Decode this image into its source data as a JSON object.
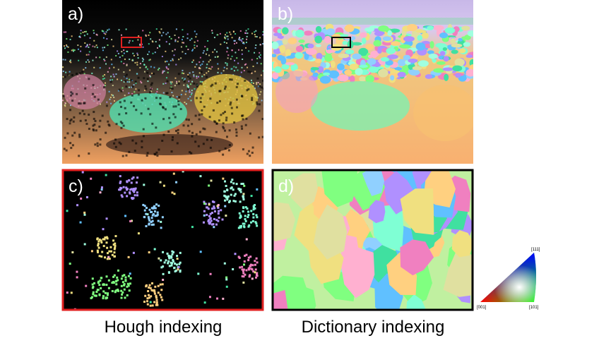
{
  "panels": [
    {
      "label": "a)"
    },
    {
      "label": "b)"
    },
    {
      "label": "c)"
    },
    {
      "label": "d)"
    }
  ],
  "captions": [
    "Hough indexing",
    "Dictionary indexing"
  ],
  "color_key": {
    "top": "[111]",
    "left": "[001]",
    "right": "[101]"
  }
}
